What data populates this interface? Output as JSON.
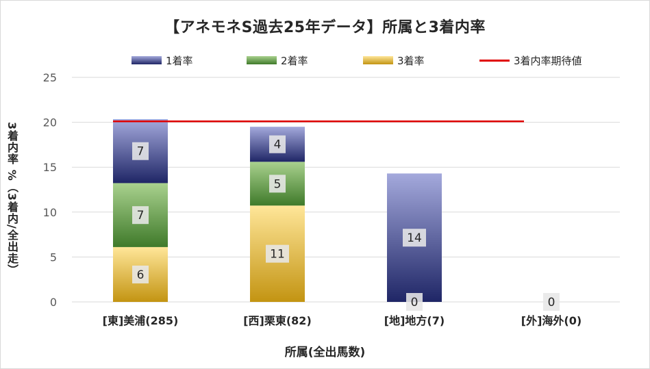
{
  "chart_data": {
    "type": "bar",
    "title": "【アネモネS過去25年データ】所属と3着内率",
    "xlabel": "所属(全出馬数)",
    "ylabel": "3着内率 %（3着内/全出走）",
    "ylim": [
      0,
      25
    ],
    "yticks": [
      0,
      5,
      10,
      15,
      20,
      25
    ],
    "grid": true,
    "legend_position": "top",
    "categories": [
      "[東]美浦(285)",
      "[西]栗東(82)",
      "[地]地方(7)",
      "[外]海外(0)"
    ],
    "series": [
      {
        "name": "1着率",
        "values": [
          7,
          4,
          14,
          0
        ],
        "color_top": "#a4a9dc",
        "color_bottom": "#1f2666"
      },
      {
        "name": "2着率",
        "values": [
          7,
          5,
          0,
          0
        ],
        "color_top": "#a9d18e",
        "color_bottom": "#3f7a2a"
      },
      {
        "name": "3着率",
        "values": [
          6,
          11,
          0,
          0
        ],
        "color_top": "#ffe699",
        "color_bottom": "#c39412"
      }
    ],
    "data_labels": [
      {
        "category": 0,
        "series": 0,
        "text": "7"
      },
      {
        "category": 0,
        "series": 1,
        "text": "7"
      },
      {
        "category": 0,
        "series": 2,
        "text": "6"
      },
      {
        "category": 1,
        "series": 0,
        "text": "4"
      },
      {
        "category": 1,
        "series": 1,
        "text": "5"
      },
      {
        "category": 1,
        "series": 2,
        "text": "11"
      },
      {
        "category": 2,
        "series": 0,
        "text": "14"
      },
      {
        "category": 2,
        "series": 2,
        "text": "0"
      },
      {
        "category": 3,
        "series": 2,
        "text": "0"
      }
    ],
    "stack_totals": [
      20.35,
      19.5,
      14.3,
      0
    ],
    "reference_line": {
      "name": "3着内率期待値",
      "value": 20.1,
      "color": "#e00000"
    }
  }
}
